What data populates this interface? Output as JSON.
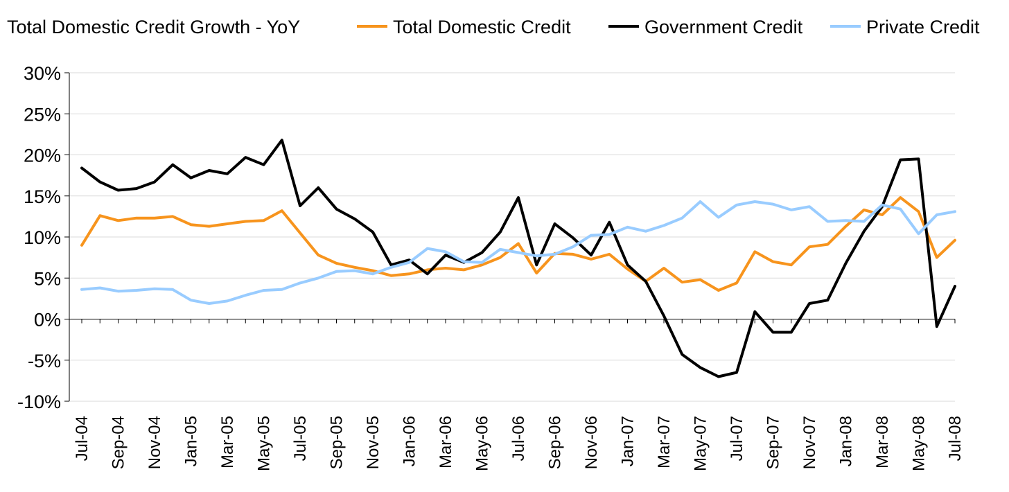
{
  "chart_data": {
    "type": "line",
    "title": "Total Domestic Credit Growth - YoY",
    "x": [
      "Jul-04",
      "Aug-04",
      "Sep-04",
      "Oct-04",
      "Nov-04",
      "Dec-04",
      "Jan-05",
      "Feb-05",
      "Mar-05",
      "Apr-05",
      "May-05",
      "Jun-05",
      "Jul-05",
      "Aug-05",
      "Sep-05",
      "Oct-05",
      "Nov-05",
      "Dec-05",
      "Jan-06",
      "Feb-06",
      "Mar-06",
      "Apr-06",
      "May-06",
      "Jun-06",
      "Jul-06",
      "Aug-06",
      "Sep-06",
      "Oct-06",
      "Nov-06",
      "Dec-06",
      "Jan-07",
      "Feb-07",
      "Mar-07",
      "Apr-07",
      "May-07",
      "Jun-07",
      "Jul-07",
      "Aug-07",
      "Sep-07",
      "Oct-07",
      "Nov-07",
      "Dec-07",
      "Jan-08",
      "Feb-08",
      "Mar-08",
      "Apr-08",
      "May-08",
      "Jun-08",
      "Jul-08"
    ],
    "tick_labels": [
      "Jul-04",
      "Sep-04",
      "Nov-04",
      "Jan-05",
      "Mar-05",
      "May-05",
      "Jul-05",
      "Sep-05",
      "Nov-05",
      "Jan-06",
      "Mar-06",
      "May-06",
      "Jul-06",
      "Sep-06",
      "Nov-06",
      "Jan-07",
      "Mar-07",
      "May-07",
      "Jul-07",
      "Sep-07",
      "Nov-07",
      "Jan-08",
      "Mar-08",
      "May-08",
      "Jul-08"
    ],
    "y_ticks": [
      "30%",
      "25%",
      "20%",
      "15%",
      "10%",
      "5%",
      "0%",
      "-5%",
      "-10%"
    ],
    "y_tick_values": [
      30,
      25,
      20,
      15,
      10,
      5,
      0,
      -5,
      -10
    ],
    "ylim": [
      -10,
      30
    ],
    "grid": true,
    "legend_position": "top",
    "series": [
      {
        "name": "Total Domestic Credit",
        "color": "#F7941D",
        "values": [
          9.0,
          12.6,
          12.0,
          12.3,
          12.3,
          12.5,
          11.5,
          11.3,
          11.6,
          11.9,
          12.0,
          13.2,
          10.5,
          7.8,
          6.8,
          6.3,
          5.9,
          5.3,
          5.5,
          6.0,
          6.2,
          6.0,
          6.6,
          7.5,
          9.2,
          5.6,
          8.0,
          7.9,
          7.3,
          7.9,
          6.1,
          4.6,
          6.2,
          4.5,
          4.8,
          3.5,
          4.4,
          8.2,
          7.0,
          6.6,
          8.8,
          9.1,
          11.3,
          13.3,
          12.7,
          14.8,
          13.1,
          7.5,
          9.6
        ]
      },
      {
        "name": "Government Credit",
        "color": "#000000",
        "values": [
          18.4,
          16.7,
          15.7,
          15.9,
          16.7,
          18.8,
          17.2,
          18.1,
          17.7,
          19.7,
          18.8,
          21.8,
          13.8,
          16.0,
          13.4,
          12.2,
          10.6,
          6.6,
          7.2,
          5.5,
          7.8,
          6.9,
          8.1,
          10.6,
          14.8,
          6.6,
          11.6,
          9.9,
          7.8,
          11.8,
          6.6,
          4.6,
          0.4,
          -4.3,
          -5.9,
          -7.0,
          -6.5,
          0.9,
          -1.6,
          -1.6,
          1.9,
          2.3,
          6.8,
          10.7,
          13.7,
          19.4,
          19.5,
          -0.9,
          4.0
        ]
      },
      {
        "name": "Private Credit",
        "color": "#99CCFF",
        "values": [
          3.6,
          3.8,
          3.4,
          3.5,
          3.7,
          3.6,
          2.3,
          1.9,
          2.2,
          2.9,
          3.5,
          3.6,
          4.4,
          5.0,
          5.8,
          5.9,
          5.5,
          6.3,
          6.9,
          8.6,
          8.2,
          7.0,
          6.9,
          8.5,
          8.1,
          7.7,
          7.9,
          8.8,
          10.2,
          10.3,
          11.2,
          10.7,
          11.4,
          12.3,
          14.3,
          12.4,
          13.9,
          14.3,
          14.0,
          13.3,
          13.7,
          11.9,
          12.0,
          11.9,
          13.9,
          13.4,
          10.4,
          12.7,
          13.1
        ]
      }
    ]
  }
}
